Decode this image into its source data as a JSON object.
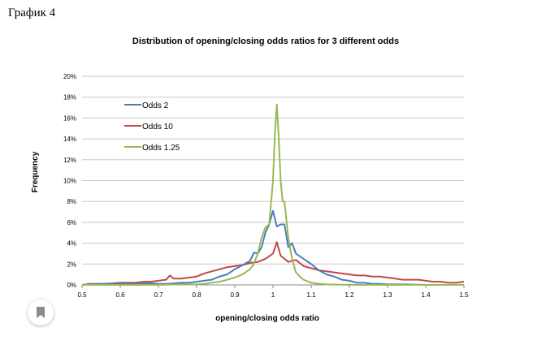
{
  "page": {
    "label": "График 4",
    "bookmark_icon": "bookmark-icon"
  },
  "chart_data": {
    "type": "line",
    "title": "Distribution of opening/closing odds ratios for 3 different odds",
    "xlabel": "opening/closing odds ratio",
    "ylabel": "Frequency",
    "xlim": [
      0.5,
      1.5
    ],
    "ylim": [
      0,
      20
    ],
    "x_ticks": [
      "0.5",
      "0.6",
      "0.7",
      "0.8",
      "0.9",
      "1",
      "1.1",
      "1.2",
      "1.3",
      "1.4",
      "1.5"
    ],
    "y_ticks": [
      "0%",
      "2%",
      "4%",
      "6%",
      "8%",
      "10%",
      "12%",
      "14%",
      "16%",
      "18%",
      "20%"
    ],
    "grid": true,
    "legend_position": "top-left",
    "series": [
      {
        "name": "Odds 2",
        "color": "#4a7ebb",
        "x": [
          0.5,
          0.52,
          0.54,
          0.56,
          0.58,
          0.6,
          0.62,
          0.64,
          0.66,
          0.68,
          0.7,
          0.72,
          0.74,
          0.76,
          0.78,
          0.8,
          0.82,
          0.84,
          0.86,
          0.88,
          0.9,
          0.92,
          0.94,
          0.95,
          0.96,
          0.97,
          0.98,
          0.99,
          1.0,
          1.01,
          1.02,
          1.03,
          1.04,
          1.05,
          1.06,
          1.08,
          1.1,
          1.12,
          1.14,
          1.16,
          1.18,
          1.2,
          1.22,
          1.24,
          1.26,
          1.28,
          1.3,
          1.35,
          1.4,
          1.45,
          1.5
        ],
        "values": [
          0,
          0.05,
          0.1,
          0.1,
          0.1,
          0.1,
          0.1,
          0.1,
          0.15,
          0.15,
          0.1,
          0.1,
          0.15,
          0.2,
          0.2,
          0.3,
          0.4,
          0.5,
          0.8,
          1.0,
          1.5,
          1.9,
          2.3,
          3.1,
          3.0,
          3.6,
          5.0,
          5.8,
          7.1,
          5.6,
          5.8,
          5.8,
          3.6,
          4.0,
          3.0,
          2.5,
          2.0,
          1.4,
          1.0,
          0.8,
          0.5,
          0.4,
          0.2,
          0.2,
          0.1,
          0.1,
          0.05,
          0.05,
          0,
          0,
          0
        ]
      },
      {
        "name": "Odds 10",
        "color": "#be4b48",
        "x": [
          0.5,
          0.52,
          0.54,
          0.56,
          0.58,
          0.6,
          0.62,
          0.64,
          0.66,
          0.68,
          0.7,
          0.72,
          0.73,
          0.74,
          0.76,
          0.78,
          0.8,
          0.82,
          0.84,
          0.86,
          0.88,
          0.9,
          0.92,
          0.94,
          0.96,
          0.98,
          1.0,
          1.01,
          1.02,
          1.04,
          1.06,
          1.08,
          1.1,
          1.12,
          1.14,
          1.16,
          1.18,
          1.2,
          1.22,
          1.24,
          1.26,
          1.28,
          1.3,
          1.32,
          1.34,
          1.36,
          1.38,
          1.4,
          1.42,
          1.44,
          1.46,
          1.48,
          1.5
        ],
        "values": [
          0,
          0.1,
          0.1,
          0.1,
          0.15,
          0.2,
          0.2,
          0.2,
          0.3,
          0.3,
          0.4,
          0.5,
          0.9,
          0.6,
          0.6,
          0.7,
          0.8,
          1.1,
          1.3,
          1.5,
          1.7,
          1.8,
          1.9,
          2.1,
          2.2,
          2.5,
          3.0,
          4.1,
          2.8,
          2.2,
          2.4,
          1.8,
          1.6,
          1.4,
          1.3,
          1.2,
          1.1,
          1.0,
          0.9,
          0.9,
          0.8,
          0.8,
          0.7,
          0.6,
          0.5,
          0.5,
          0.5,
          0.4,
          0.3,
          0.3,
          0.2,
          0.2,
          0.3
        ]
      },
      {
        "name": "Odds 1.25",
        "color": "#98b954",
        "x": [
          0.5,
          0.6,
          0.7,
          0.75,
          0.8,
          0.82,
          0.84,
          0.86,
          0.88,
          0.9,
          0.92,
          0.94,
          0.95,
          0.96,
          0.97,
          0.98,
          0.99,
          1.0,
          1.005,
          1.01,
          1.015,
          1.02,
          1.025,
          1.03,
          1.04,
          1.05,
          1.06,
          1.07,
          1.08,
          1.1,
          1.12,
          1.14,
          1.2,
          1.3,
          1.5
        ],
        "values": [
          0,
          0,
          0,
          0.05,
          0.05,
          0.1,
          0.2,
          0.3,
          0.5,
          0.7,
          1.0,
          1.5,
          2.0,
          3.0,
          4.5,
          5.5,
          5.8,
          10.0,
          14.5,
          17.3,
          14.2,
          10.0,
          8.0,
          8.0,
          4.5,
          2.5,
          1.2,
          0.8,
          0.5,
          0.2,
          0.1,
          0.05,
          0,
          0,
          0
        ]
      }
    ]
  }
}
